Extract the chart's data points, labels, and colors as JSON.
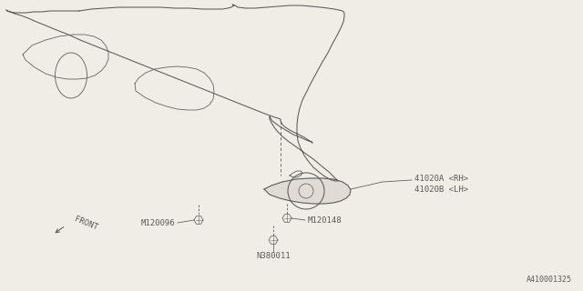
{
  "background_color": "#f0ede6",
  "line_color": "#5a5a5a",
  "labels": {
    "part1": "41020A <RH>",
    "part2": "41020B <LH>",
    "bolt1": "M120096",
    "bolt2": "M120148",
    "bolt3": "N380011",
    "front": "FRONT",
    "diagram_id": "A410001325"
  }
}
